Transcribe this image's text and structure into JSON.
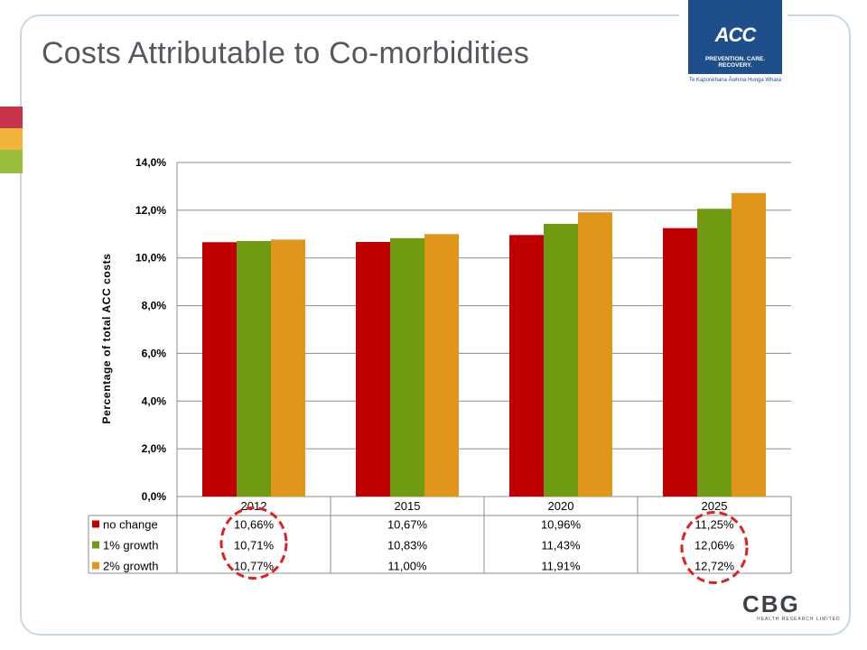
{
  "slide": {
    "title": "Costs Attributable to Co-morbidities"
  },
  "logos": {
    "acc_wordmark": "ACC",
    "acc_tagline": "PREVENTION. CARE. RECOVERY.",
    "acc_maori": "Te Kaporeihana Āwhina Hunga Whara",
    "cbg_wordmark": "CBG",
    "cbg_subtitle": "HEALTH RESEARCH LIMITED"
  },
  "colors": {
    "no_change": "#c00000",
    "growth_1": "#6f9a12",
    "growth_2": "#e0961a",
    "highlight_circle": "#e02020",
    "band_red": "#c8324a",
    "band_orange": "#f0b43c",
    "band_green": "#98be3c"
  },
  "chart_data": {
    "type": "bar",
    "title": "",
    "xlabel": "",
    "ylabel": "Percentage of total ACC costs",
    "ylim": [
      0,
      14
    ],
    "yticks": [
      "0,0%",
      "2,0%",
      "4,0%",
      "6,0%",
      "8,0%",
      "10,0%",
      "12,0%",
      "14,0%"
    ],
    "grid": true,
    "legend": "data-table",
    "categories": [
      "2012",
      "2015",
      "2020",
      "2025"
    ],
    "series": [
      {
        "name": "no change",
        "color": "#c00000",
        "values": [
          10.66,
          10.67,
          10.96,
          11.25
        ],
        "labels": [
          "10,66%",
          "10,67%",
          "10,96%",
          "11,25%"
        ]
      },
      {
        "name": "1% growth",
        "color": "#6f9a12",
        "values": [
          10.71,
          10.83,
          11.43,
          12.06
        ],
        "labels": [
          "10,71%",
          "10,83%",
          "11,43%",
          "12,06%"
        ]
      },
      {
        "name": "2% growth",
        "color": "#e0961a",
        "values": [
          10.77,
          11.0,
          11.91,
          12.72
        ],
        "labels": [
          "10,77%",
          "11,00%",
          "11,91%",
          "12,72%"
        ]
      }
    ],
    "highlighted_cells": [
      "10,66%",
      "12,72%"
    ]
  }
}
